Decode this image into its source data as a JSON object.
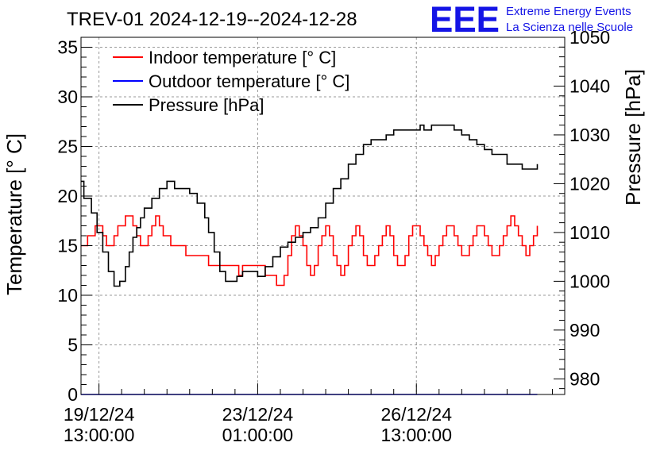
{
  "title": "TREV-01 2024-12-19--2024-12-28",
  "logo": {
    "letters": "EEE",
    "line1": "Extreme Energy Events",
    "line2": "La Scienza nelle Scuole",
    "color": "#1414e6"
  },
  "chart_data": {
    "type": "line",
    "title": "TREV-01 2024-12-19--2024-12-28",
    "ylabel": "Temperature [° C]",
    "y2label": "Pressure [hPa]",
    "xlabel": "",
    "ylim": [
      0,
      36
    ],
    "y2lim": [
      976.8,
      1050
    ],
    "xlim_hours": [
      -9.5,
      246.5
    ],
    "x_unit": "hours since 2024-12-19 13:00:00",
    "yticks": [
      "0",
      "5",
      "10",
      "15",
      "20",
      "25",
      "30",
      "35"
    ],
    "y2ticks": [
      "980",
      "990",
      "1000",
      "1010",
      "1020",
      "1030",
      "1040",
      "1050"
    ],
    "xticks": [
      {
        "hours": 0,
        "line1": "19/12/24",
        "line2": "13:00:00"
      },
      {
        "hours": 84,
        "line1": "23/12/24",
        "line2": "01:00:00"
      },
      {
        "hours": 168,
        "line1": "26/12/24",
        "line2": "13:00:00"
      }
    ],
    "grid": true,
    "legend_position": "top-left",
    "series": [
      {
        "name": "Indoor temperature [° C]",
        "axis": "left",
        "color": "#ff0000",
        "x": [
          -13,
          -10,
          -8,
          -6,
          -4,
          -2,
          0,
          2,
          4,
          6,
          8,
          10,
          12,
          14,
          16,
          18,
          20,
          22,
          24,
          26,
          28,
          30,
          32,
          34,
          36,
          38,
          40,
          42,
          44,
          46,
          48,
          50,
          52,
          54,
          56,
          58,
          60,
          62,
          64,
          66,
          68,
          70,
          72,
          74,
          76,
          78,
          80,
          82,
          84,
          86,
          88,
          90,
          92,
          94,
          96,
          98,
          100,
          102,
          104,
          106,
          108,
          110,
          112,
          114,
          116,
          118,
          120,
          122,
          124,
          126,
          128,
          130,
          132,
          134,
          136,
          138,
          140,
          142,
          144,
          146,
          148,
          150,
          152,
          154,
          156,
          158,
          160,
          162,
          164,
          166,
          168,
          170,
          172,
          174,
          176,
          178,
          180,
          182,
          184,
          186,
          188,
          190,
          192,
          194,
          196,
          198,
          200,
          202,
          204,
          206,
          208,
          210,
          212,
          214,
          216,
          218,
          220,
          222,
          224,
          226,
          228,
          230,
          232
        ],
        "values": [
          15,
          15,
          15,
          16,
          16,
          17,
          17,
          16,
          15,
          15,
          16,
          17,
          17,
          18,
          18,
          17,
          16,
          15,
          15,
          16,
          17,
          18,
          17,
          16,
          16,
          15,
          15,
          15,
          15,
          14,
          14,
          14,
          14,
          14,
          14,
          13,
          13,
          13,
          13,
          13,
          13,
          13,
          13,
          12,
          13,
          13,
          13,
          13,
          13,
          13,
          12,
          12,
          12,
          11,
          11,
          12,
          14,
          16,
          17,
          16,
          15,
          13,
          12,
          13,
          15,
          16,
          17,
          16,
          14,
          13,
          12,
          13,
          15,
          16,
          17,
          16,
          14,
          13,
          13,
          14,
          15,
          16,
          17,
          16,
          14,
          13,
          13,
          14,
          16,
          17,
          17,
          16,
          15,
          14,
          13,
          14,
          15,
          16,
          17,
          17,
          16,
          15,
          14,
          14,
          15,
          16,
          17,
          17,
          16,
          15,
          14,
          14,
          15,
          16,
          17,
          18,
          17,
          16,
          15,
          14,
          15,
          16,
          17
        ]
      },
      {
        "name": "Outdoor temperature [° C]",
        "axis": "left",
        "color": "#0000ff",
        "x": [
          -13,
          232
        ],
        "values": [
          0,
          0
        ]
      },
      {
        "name": "Pressure [hPa]",
        "axis": "right",
        "color": "#000000",
        "x": [
          -13,
          -8,
          -4,
          -1,
          2,
          5,
          8,
          11,
          14,
          16,
          18,
          20,
          22,
          24,
          28,
          32,
          36,
          40,
          44,
          48,
          52,
          56,
          58,
          61,
          64,
          67,
          70,
          73,
          76,
          80,
          84,
          88,
          92,
          96,
          100,
          104,
          108,
          112,
          116,
          120,
          124,
          128,
          132,
          136,
          140,
          144,
          148,
          152,
          156,
          160,
          164,
          168,
          170,
          172,
          174,
          176,
          180,
          184,
          188,
          192,
          196,
          200,
          204,
          208,
          212,
          216,
          220,
          224,
          228,
          232
        ],
        "values": [
          1020.5,
          1017,
          1014,
          1010,
          1006,
          1002,
          999,
          1000,
          1003,
          1006,
          1009,
          1011,
          1013,
          1015,
          1017,
          1019,
          1020.5,
          1019,
          1019,
          1018,
          1016,
          1013,
          1010,
          1006,
          1002,
          1000,
          1000,
          1001,
          1002,
          1002,
          1001,
          1003,
          1005,
          1007,
          1008,
          1009,
          1010,
          1011,
          1013,
          1016,
          1019,
          1021,
          1024,
          1026,
          1028,
          1029,
          1029,
          1030,
          1031,
          1031,
          1031,
          1031,
          1032,
          1031,
          1031,
          1032,
          1032,
          1032,
          1031,
          1030,
          1029,
          1028,
          1027,
          1026,
          1026,
          1024,
          1024,
          1023,
          1023,
          1024
        ]
      }
    ]
  }
}
